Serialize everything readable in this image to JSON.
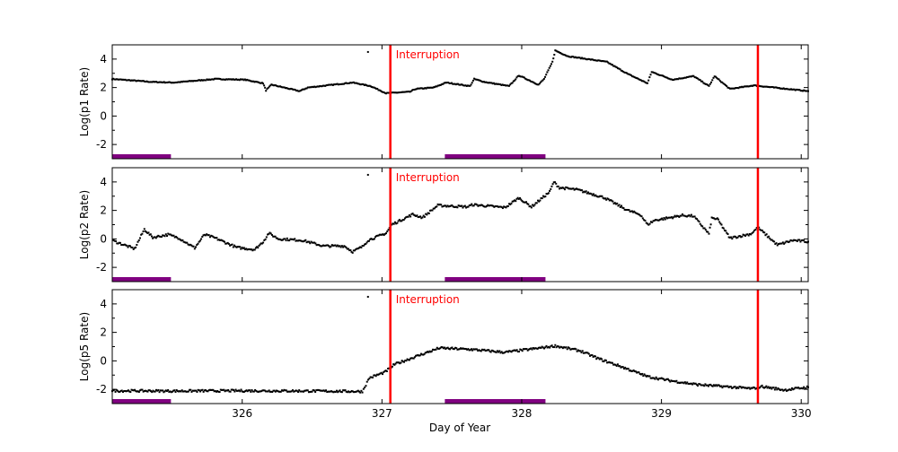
{
  "chart_data": {
    "type": "scatter",
    "xlabel": "Day of Year",
    "xlim": [
      325.07,
      330.05
    ],
    "xticks": [
      326,
      327,
      328,
      329,
      330
    ],
    "grid": false,
    "colors": {
      "points": "#000000",
      "interruption": "#ff0000",
      "bar": "#800080"
    },
    "interruptions": [
      327.06,
      329.69
    ],
    "interruption_label": "Interruption",
    "bars": [
      [
        325.07,
        325.49
      ],
      [
        327.45,
        328.17
      ]
    ],
    "panels": [
      {
        "ylabel": "Log(p1 Rate)",
        "ylim": [
          -3,
          5
        ],
        "yticks": [
          -2,
          0,
          2,
          4
        ],
        "outlier": [
          326.9,
          4.5
        ],
        "x": [
          325.07,
          325.28,
          325.34,
          325.51,
          325.81,
          326.02,
          326.15,
          326.17,
          326.21,
          326.41,
          326.47,
          326.79,
          326.92,
          327.03,
          327.2,
          327.24,
          327.37,
          327.46,
          327.63,
          327.66,
          327.73,
          327.91,
          327.98,
          328.12,
          328.16,
          328.22,
          328.24,
          328.33,
          328.61,
          328.68,
          328.76,
          328.9,
          328.93,
          329.08,
          329.23,
          329.34,
          329.38,
          329.49,
          329.66,
          330.05
        ],
        "y": [
          2.6,
          2.45,
          2.4,
          2.35,
          2.6,
          2.55,
          2.3,
          1.8,
          2.2,
          1.75,
          2.0,
          2.35,
          2.1,
          1.6,
          1.7,
          1.9,
          2.0,
          2.35,
          2.1,
          2.6,
          2.4,
          2.1,
          2.85,
          2.2,
          2.6,
          3.8,
          4.6,
          4.2,
          3.8,
          3.4,
          2.95,
          2.3,
          3.1,
          2.55,
          2.8,
          2.1,
          2.8,
          1.9,
          2.15,
          1.75
        ]
      },
      {
        "ylabel": "Log(p2 Rate)",
        "ylim": [
          -3,
          5
        ],
        "yticks": [
          -2,
          0,
          2,
          4
        ],
        "outlier": [
          326.9,
          4.5
        ],
        "x": [
          325.08,
          325.23,
          325.3,
          325.36,
          325.47,
          325.55,
          325.66,
          325.73,
          325.81,
          325.96,
          326.09,
          326.15,
          326.19,
          326.26,
          326.43,
          326.58,
          326.73,
          326.79,
          326.86,
          326.9,
          327.03,
          327.07,
          327.22,
          327.29,
          327.4,
          327.61,
          327.65,
          327.88,
          327.98,
          328.07,
          328.2,
          328.23,
          328.27,
          328.4,
          328.59,
          328.76,
          328.85,
          328.9,
          328.95,
          329.15,
          329.23,
          329.34,
          329.36,
          329.4,
          329.49,
          329.64,
          329.69,
          329.83,
          329.94,
          330.05
        ],
        "y": [
          -0.15,
          -0.7,
          0.67,
          0.1,
          0.3,
          0.05,
          -0.64,
          0.3,
          0.05,
          -0.6,
          -0.75,
          -0.2,
          0.4,
          0,
          -0.1,
          -0.5,
          -0.5,
          -0.9,
          -0.55,
          -0.1,
          0.4,
          1.0,
          1.72,
          1.5,
          2.35,
          2.25,
          2.4,
          2.2,
          2.88,
          2.25,
          3.3,
          4.0,
          3.6,
          3.45,
          2.9,
          2.0,
          1.7,
          1.0,
          1.3,
          1.65,
          1.6,
          0.35,
          1.45,
          1.4,
          0.05,
          0.35,
          0.8,
          -0.43,
          -0.1,
          -0.2
        ]
      },
      {
        "ylabel": "Log(p5 Rate)",
        "ylim": [
          -3,
          5
        ],
        "yticks": [
          -2,
          0,
          2,
          4
        ],
        "outlier": [
          326.9,
          4.5
        ],
        "x": [
          325.07,
          325.5,
          326.0,
          326.5,
          326.86,
          326.91,
          327.02,
          327.09,
          327.25,
          327.41,
          327.64,
          327.88,
          328.09,
          328.24,
          328.42,
          328.55,
          328.71,
          328.9,
          329.07,
          329.26,
          329.65,
          329.72,
          329.88,
          330.05
        ],
        "y": [
          -2.1,
          -2.12,
          -2.1,
          -2.12,
          -2.15,
          -1.2,
          -0.8,
          -0.25,
          0.33,
          0.9,
          0.8,
          0.6,
          0.85,
          1.05,
          0.7,
          0.15,
          -0.4,
          -1.1,
          -1.4,
          -1.67,
          -1.95,
          -1.8,
          -2.05,
          -1.85
        ]
      }
    ]
  }
}
